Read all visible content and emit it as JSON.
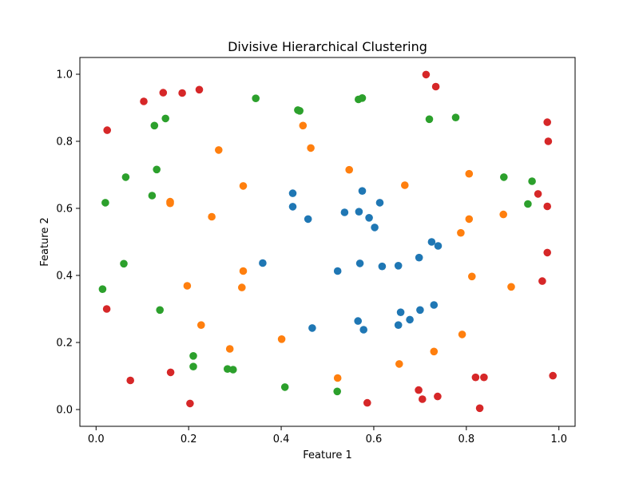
{
  "chart_data": {
    "type": "scatter",
    "title": "Divisive Hierarchical Clustering",
    "xlabel": "Feature 1",
    "ylabel": "Feature 2",
    "xlim": [
      -0.035,
      1.035
    ],
    "ylim": [
      -0.05,
      1.05
    ],
    "xticks": [
      "0.0",
      "0.2",
      "0.4",
      "0.6",
      "0.8",
      "1.0"
    ],
    "yticks": [
      "0.0",
      "0.2",
      "0.4",
      "0.6",
      "0.8",
      "1.0"
    ],
    "grid": false,
    "series": [
      {
        "color": "#1f77b4",
        "points": [
          [
            0.425,
            0.645
          ],
          [
            0.425,
            0.605
          ],
          [
            0.458,
            0.568
          ],
          [
            0.537,
            0.588
          ],
          [
            0.568,
            0.59
          ],
          [
            0.575,
            0.652
          ],
          [
            0.59,
            0.572
          ],
          [
            0.602,
            0.543
          ],
          [
            0.613,
            0.617
          ],
          [
            0.36,
            0.437
          ],
          [
            0.522,
            0.413
          ],
          [
            0.57,
            0.436
          ],
          [
            0.618,
            0.427
          ],
          [
            0.653,
            0.429
          ],
          [
            0.698,
            0.453
          ],
          [
            0.725,
            0.5
          ],
          [
            0.739,
            0.488
          ],
          [
            0.467,
            0.243
          ],
          [
            0.566,
            0.264
          ],
          [
            0.578,
            0.238
          ],
          [
            0.653,
            0.252
          ],
          [
            0.658,
            0.29
          ],
          [
            0.678,
            0.268
          ],
          [
            0.7,
            0.297
          ],
          [
            0.73,
            0.312
          ]
        ]
      },
      {
        "color": "#ff7f0e",
        "points": [
          [
            0.447,
            0.847
          ],
          [
            0.464,
            0.78
          ],
          [
            0.265,
            0.774
          ],
          [
            0.547,
            0.715
          ],
          [
            0.318,
            0.667
          ],
          [
            0.667,
            0.669
          ],
          [
            0.16,
            0.62
          ],
          [
            0.16,
            0.615
          ],
          [
            0.25,
            0.575
          ],
          [
            0.806,
            0.703
          ],
          [
            0.806,
            0.568
          ],
          [
            0.88,
            0.582
          ],
          [
            0.788,
            0.527
          ],
          [
            0.318,
            0.413
          ],
          [
            0.812,
            0.397
          ],
          [
            0.197,
            0.369
          ],
          [
            0.315,
            0.364
          ],
          [
            0.897,
            0.366
          ],
          [
            0.227,
            0.252
          ],
          [
            0.401,
            0.21
          ],
          [
            0.289,
            0.181
          ],
          [
            0.791,
            0.224
          ],
          [
            0.73,
            0.173
          ],
          [
            0.655,
            0.136
          ],
          [
            0.522,
            0.094
          ]
        ]
      },
      {
        "color": "#2ca02c",
        "points": [
          [
            0.345,
            0.928
          ],
          [
            0.436,
            0.893
          ],
          [
            0.44,
            0.891
          ],
          [
            0.567,
            0.925
          ],
          [
            0.575,
            0.929
          ],
          [
            0.72,
            0.866
          ],
          [
            0.777,
            0.871
          ],
          [
            0.15,
            0.868
          ],
          [
            0.126,
            0.847
          ],
          [
            0.064,
            0.693
          ],
          [
            0.131,
            0.716
          ],
          [
            0.121,
            0.638
          ],
          [
            0.02,
            0.617
          ],
          [
            0.881,
            0.693
          ],
          [
            0.942,
            0.681
          ],
          [
            0.933,
            0.613
          ],
          [
            0.06,
            0.435
          ],
          [
            0.014,
            0.359
          ],
          [
            0.138,
            0.297
          ],
          [
            0.21,
            0.16
          ],
          [
            0.21,
            0.128
          ],
          [
            0.284,
            0.121
          ],
          [
            0.296,
            0.119
          ],
          [
            0.408,
            0.067
          ],
          [
            0.521,
            0.054
          ]
        ]
      },
      {
        "color": "#d62728",
        "points": [
          [
            0.713,
            0.999
          ],
          [
            0.734,
            0.963
          ],
          [
            0.223,
            0.954
          ],
          [
            0.186,
            0.944
          ],
          [
            0.145,
            0.945
          ],
          [
            0.103,
            0.919
          ],
          [
            0.024,
            0.833
          ],
          [
            0.975,
            0.857
          ],
          [
            0.977,
            0.8
          ],
          [
            0.955,
            0.643
          ],
          [
            0.975,
            0.606
          ],
          [
            0.975,
            0.468
          ],
          [
            0.964,
            0.383
          ],
          [
            0.023,
            0.3
          ],
          [
            0.161,
            0.111
          ],
          [
            0.074,
            0.087
          ],
          [
            0.203,
            0.018
          ],
          [
            0.586,
            0.02
          ],
          [
            0.697,
            0.058
          ],
          [
            0.705,
            0.031
          ],
          [
            0.738,
            0.039
          ],
          [
            0.82,
            0.096
          ],
          [
            0.838,
            0.096
          ],
          [
            0.987,
            0.101
          ],
          [
            0.829,
            0.004
          ]
        ]
      }
    ]
  }
}
